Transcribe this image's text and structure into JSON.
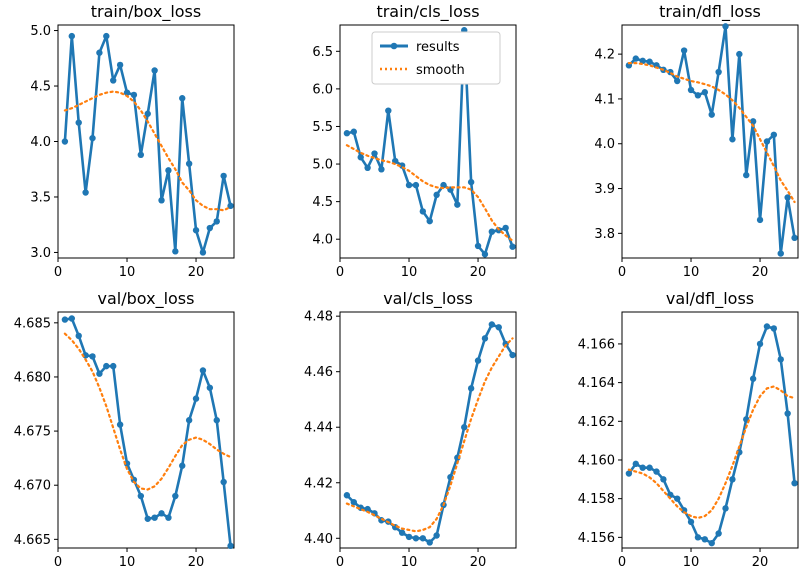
{
  "figure": {
    "background": "#ffffff"
  },
  "legend": {
    "location": "upper-right",
    "panel": 1,
    "entries": [
      {
        "label": "results",
        "color": "#1f77b4",
        "style": "solid-with-markers"
      },
      {
        "label": "smooth",
        "color": "#ff7f0e",
        "style": "dotted"
      }
    ]
  },
  "chart_data": [
    {
      "type": "line",
      "title": "train/box_loss",
      "xlim": [
        0,
        25.5
      ],
      "ylim": [
        2.95,
        5.05
      ],
      "xticks": [
        0,
        10,
        20
      ],
      "yticks": [
        3.0,
        3.5,
        4.0,
        4.5,
        5.0
      ],
      "ytick_labels": [
        "3.0",
        "3.5",
        "4.0",
        "4.5",
        "5.0"
      ],
      "x": [
        1,
        2,
        3,
        4,
        5,
        6,
        7,
        8,
        9,
        10,
        11,
        12,
        13,
        14,
        15,
        16,
        17,
        18,
        19,
        20,
        21,
        22,
        23,
        24,
        25
      ],
      "series": [
        {
          "name": "results",
          "values": [
            4.0,
            4.95,
            4.17,
            3.54,
            4.03,
            4.8,
            4.95,
            4.55,
            4.69,
            4.44,
            4.42,
            3.88,
            4.25,
            4.64,
            3.47,
            3.74,
            3.01,
            4.39,
            3.8,
            3.2,
            3.0,
            3.22,
            3.28,
            3.69,
            3.42
          ]
        },
        {
          "name": "smooth",
          "values": [
            4.28,
            4.3,
            4.33,
            4.36,
            4.39,
            4.42,
            4.44,
            4.45,
            4.44,
            4.41,
            4.36,
            4.28,
            4.18,
            4.07,
            3.96,
            3.85,
            3.75,
            3.63,
            3.56,
            3.47,
            3.42,
            3.39,
            3.39,
            3.38,
            3.41
          ]
        }
      ]
    },
    {
      "type": "line",
      "title": "train/cls_loss",
      "xlim": [
        0,
        25.5
      ],
      "ylim": [
        3.75,
        6.85
      ],
      "xticks": [
        0,
        10,
        20
      ],
      "yticks": [
        4.0,
        4.5,
        5.0,
        5.5,
        6.0,
        6.5
      ],
      "ytick_labels": [
        "4.0",
        "4.5",
        "5.0",
        "5.5",
        "6.0",
        "6.5"
      ],
      "x": [
        1,
        2,
        3,
        4,
        5,
        6,
        7,
        8,
        9,
        10,
        11,
        12,
        13,
        14,
        15,
        16,
        17,
        18,
        19,
        20,
        21,
        22,
        23,
        24,
        25
      ],
      "series": [
        {
          "name": "results",
          "values": [
            5.41,
            5.43,
            5.09,
            4.95,
            5.14,
            4.93,
            5.71,
            5.04,
            4.98,
            4.72,
            4.72,
            4.37,
            4.24,
            4.59,
            4.72,
            4.66,
            4.46,
            6.78,
            4.76,
            3.91,
            3.8,
            4.1,
            4.12,
            4.15,
            3.9
          ]
        },
        {
          "name": "smooth",
          "values": [
            5.25,
            5.2,
            5.15,
            5.11,
            5.08,
            5.05,
            5.03,
            5.0,
            4.96,
            4.91,
            4.84,
            4.77,
            4.72,
            4.69,
            4.68,
            4.69,
            4.69,
            4.69,
            4.66,
            4.56,
            4.41,
            4.25,
            4.13,
            4.05,
            3.98
          ]
        }
      ]
    },
    {
      "type": "line",
      "title": "train/dfl_loss",
      "xlim": [
        0,
        25.5
      ],
      "ylim": [
        3.745,
        4.265
      ],
      "xticks": [
        0,
        10,
        20
      ],
      "yticks": [
        3.8,
        3.9,
        4.0,
        4.1,
        4.2
      ],
      "ytick_labels": [
        "3.8",
        "3.9",
        "4.0",
        "4.1",
        "4.2"
      ],
      "x": [
        1,
        2,
        3,
        4,
        5,
        6,
        7,
        8,
        9,
        10,
        11,
        12,
        13,
        14,
        15,
        16,
        17,
        18,
        19,
        20,
        21,
        22,
        23,
        24,
        25
      ],
      "series": [
        {
          "name": "results",
          "values": [
            4.175,
            4.19,
            4.185,
            4.183,
            4.175,
            4.165,
            4.16,
            4.14,
            4.208,
            4.12,
            4.108,
            4.115,
            4.065,
            4.16,
            4.262,
            4.01,
            4.2,
            3.93,
            4.05,
            3.83,
            4.005,
            4.02,
            3.755,
            3.88,
            3.79
          ]
        },
        {
          "name": "smooth",
          "values": [
            4.18,
            4.18,
            4.178,
            4.175,
            4.17,
            4.165,
            4.158,
            4.15,
            4.145,
            4.14,
            4.137,
            4.133,
            4.128,
            4.12,
            4.11,
            4.097,
            4.08,
            4.06,
            4.04,
            4.01,
            3.98,
            3.95,
            3.918,
            3.895,
            3.87
          ]
        }
      ]
    },
    {
      "type": "line",
      "title": "val/box_loss",
      "xlim": [
        0,
        25.5
      ],
      "ylim": [
        4.6642,
        4.686
      ],
      "xticks": [
        0,
        10,
        20
      ],
      "yticks": [
        4.665,
        4.67,
        4.675,
        4.68,
        4.685
      ],
      "ytick_labels": [
        "4.665",
        "4.670",
        "4.675",
        "4.680",
        "4.685"
      ],
      "x": [
        1,
        2,
        3,
        4,
        5,
        6,
        7,
        8,
        9,
        10,
        11,
        12,
        13,
        14,
        15,
        16,
        17,
        18,
        19,
        20,
        21,
        22,
        23,
        24,
        25
      ],
      "series": [
        {
          "name": "results",
          "values": [
            4.6853,
            4.6854,
            4.6838,
            4.682,
            4.6819,
            4.6803,
            4.681,
            4.681,
            4.6756,
            4.672,
            4.6705,
            4.669,
            4.6669,
            4.667,
            4.6674,
            4.667,
            4.669,
            4.6718,
            4.676,
            4.678,
            4.6806,
            4.679,
            4.676,
            4.6703,
            4.6644
          ]
        },
        {
          "name": "smooth",
          "values": [
            4.684,
            4.6834,
            4.6826,
            4.6816,
            4.6805,
            4.679,
            4.6773,
            4.6753,
            4.6733,
            4.6715,
            4.6703,
            4.6697,
            4.6696,
            4.6699,
            4.6706,
            4.6716,
            4.6727,
            4.6737,
            4.6742,
            4.6744,
            4.6742,
            4.6738,
            4.6733,
            4.6729,
            4.6726
          ]
        }
      ]
    },
    {
      "type": "line",
      "title": "val/cls_loss",
      "xlim": [
        0,
        25.5
      ],
      "ylim": [
        4.3965,
        4.4815
      ],
      "xticks": [
        0,
        10,
        20
      ],
      "yticks": [
        4.4,
        4.42,
        4.44,
        4.46,
        4.48
      ],
      "ytick_labels": [
        "4.40",
        "4.42",
        "4.44",
        "4.46",
        "4.48"
      ],
      "x": [
        1,
        2,
        3,
        4,
        5,
        6,
        7,
        8,
        9,
        10,
        11,
        12,
        13,
        14,
        15,
        16,
        17,
        18,
        19,
        20,
        21,
        22,
        23,
        24,
        25
      ],
      "series": [
        {
          "name": "results",
          "values": [
            4.4155,
            4.413,
            4.411,
            4.4105,
            4.409,
            4.4065,
            4.406,
            4.404,
            4.402,
            4.4005,
            4.4,
            4.4,
            4.3985,
            4.401,
            4.412,
            4.422,
            4.429,
            4.44,
            4.454,
            4.464,
            4.472,
            4.477,
            4.476,
            4.47,
            4.466
          ]
        },
        {
          "name": "smooth",
          "values": [
            4.4125,
            4.4115,
            4.4105,
            4.4095,
            4.4083,
            4.407,
            4.4058,
            4.4045,
            4.4035,
            4.403,
            4.4025,
            4.403,
            4.404,
            4.407,
            4.412,
            4.419,
            4.427,
            4.435,
            4.443,
            4.45,
            4.4565,
            4.4615,
            4.4655,
            4.4695,
            4.472
          ]
        }
      ]
    },
    {
      "type": "line",
      "title": "val/dfl_loss",
      "xlim": [
        0,
        25.5
      ],
      "ylim": [
        4.15545,
        4.16765
      ],
      "xticks": [
        0,
        10,
        20
      ],
      "yticks": [
        4.156,
        4.158,
        4.16,
        4.162,
        4.164,
        4.166
      ],
      "ytick_labels": [
        "4.156",
        "4.158",
        "4.160",
        "4.162",
        "4.164",
        "4.166"
      ],
      "x": [
        1,
        2,
        3,
        4,
        5,
        6,
        7,
        8,
        9,
        10,
        11,
        12,
        13,
        14,
        15,
        16,
        17,
        18,
        19,
        20,
        21,
        22,
        23,
        24,
        25
      ],
      "series": [
        {
          "name": "results",
          "values": [
            4.1593,
            4.1598,
            4.1596,
            4.1596,
            4.1594,
            4.159,
            4.1582,
            4.158,
            4.1574,
            4.1568,
            4.156,
            4.1559,
            4.1557,
            4.1562,
            4.1575,
            4.159,
            4.1604,
            4.1621,
            4.1642,
            4.166,
            4.1669,
            4.1668,
            4.1652,
            4.1624,
            4.1588
          ]
        },
        {
          "name": "smooth",
          "values": [
            4.1595,
            4.1594,
            4.1593,
            4.1591,
            4.1588,
            4.1584,
            4.158,
            4.1576,
            4.1573,
            4.1571,
            4.157,
            4.1571,
            4.1574,
            4.158,
            4.1588,
            4.1597,
            4.1607,
            4.1617,
            4.1626,
            4.1633,
            4.1637,
            4.1638,
            4.1636,
            4.1633,
            4.1632
          ]
        }
      ]
    }
  ]
}
